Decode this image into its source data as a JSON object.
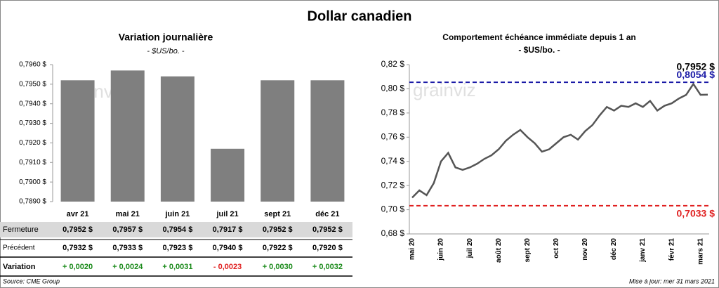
{
  "title": "Dollar canadien",
  "chart_data": [
    {
      "type": "bar",
      "title": "Variation  journalière",
      "subtitle": "- $US/bo. -",
      "categories": [
        "avr 21",
        "mai 21",
        "juin 21",
        "juil 21",
        "sept 21",
        "déc 21"
      ],
      "values": [
        0.7952,
        0.7957,
        0.7954,
        0.7917,
        0.7952,
        0.7952
      ],
      "color": "#7f7f7f",
      "watermark": "grainviz",
      "ylim": [
        0.789,
        0.796
      ],
      "yticks": [
        {
          "value": 0.789,
          "label": "0,7890 $"
        },
        {
          "value": 0.79,
          "label": "0,7900 $"
        },
        {
          "value": 0.791,
          "label": "0,7910 $"
        },
        {
          "value": 0.792,
          "label": "0,7920 $"
        },
        {
          "value": 0.793,
          "label": "0,7930 $"
        },
        {
          "value": 0.794,
          "label": "0,7940 $"
        },
        {
          "value": 0.795,
          "label": "0,7950 $"
        },
        {
          "value": 0.796,
          "label": "0,7960 $"
        }
      ]
    },
    {
      "type": "line",
      "title": "Comportement échéance immédiate depuis 1 an",
      "subtitle": "- $US/bo. -",
      "categories": [
        "mai 20",
        null,
        null,
        null,
        "juin 20",
        null,
        null,
        null,
        "juil 20",
        null,
        null,
        null,
        "août 20",
        null,
        null,
        null,
        "sept 20",
        null,
        null,
        null,
        "oct 20",
        null,
        null,
        null,
        "nov 20",
        null,
        null,
        null,
        "déc 20",
        null,
        null,
        null,
        "janv 21",
        null,
        null,
        null,
        "févr 21",
        null,
        null,
        null,
        "mars 21",
        null
      ],
      "values": [
        0.71,
        0.716,
        0.712,
        0.722,
        0.74,
        0.747,
        0.735,
        0.733,
        0.735,
        0.738,
        0.742,
        0.745,
        0.75,
        0.757,
        0.762,
        0.766,
        0.76,
        0.755,
        0.748,
        0.75,
        0.755,
        0.76,
        0.762,
        0.758,
        0.765,
        0.77,
        0.778,
        0.785,
        0.782,
        0.786,
        0.785,
        0.788,
        0.785,
        0.79,
        0.782,
        0.786,
        0.788,
        0.792,
        0.795,
        0.804,
        0.795,
        0.7952
      ],
      "color": "#555555",
      "watermark": "grainviz",
      "ylim": [
        0.68,
        0.82
      ],
      "yticks": [
        {
          "value": 0.68,
          "label": "0,68 $"
        },
        {
          "value": 0.7,
          "label": "0,70 $"
        },
        {
          "value": 0.72,
          "label": "0,72 $"
        },
        {
          "value": 0.74,
          "label": "0,74 $"
        },
        {
          "value": 0.76,
          "label": "0,76 $"
        },
        {
          "value": 0.78,
          "label": "0,78 $"
        },
        {
          "value": 0.8,
          "label": "0,80 $"
        },
        {
          "value": 0.82,
          "label": "0,82 $"
        }
      ],
      "hlines": [
        {
          "value": 0.8054,
          "label": "0,8054 $",
          "color": "#1a1aa6"
        },
        {
          "value": 0.7033,
          "label": "0,7033 $",
          "color": "#e02020"
        }
      ],
      "annotations": [
        {
          "value": 0.7952,
          "label": "0,7952 $"
        }
      ]
    }
  ],
  "table": {
    "rows": [
      {
        "label": "Fermeture",
        "cells": [
          "0,7952 $",
          "0,7957 $",
          "0,7954 $",
          "0,7917 $",
          "0,7952 $",
          "0,7952 $"
        ]
      },
      {
        "label": "Précédent",
        "cells": [
          "0,7932 $",
          "0,7933 $",
          "0,7923 $",
          "0,7940 $",
          "0,7922 $",
          "0,7920 $"
        ]
      },
      {
        "label": "Variation",
        "cells": [
          "+ 0,0020",
          "+ 0,0024",
          "+ 0,0031",
          "- 0,0023",
          "+ 0,0030",
          "+ 0,0032"
        ],
        "colors": [
          "#1a8a1a",
          "#1a8a1a",
          "#1a8a1a",
          "#e02020",
          "#1a8a1a",
          "#1a8a1a"
        ]
      }
    ]
  },
  "footer": {
    "source": "Source: CME Group",
    "updated": "Mise à jour: mer 31 mars 2021"
  }
}
